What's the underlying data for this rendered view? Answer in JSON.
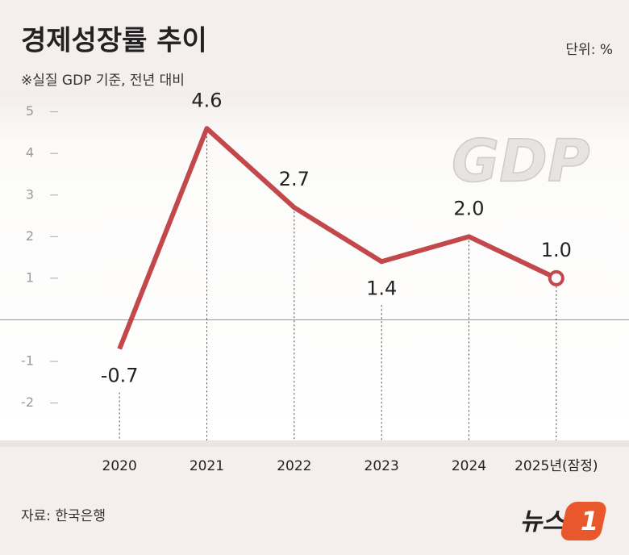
{
  "chart_data": {
    "type": "line",
    "title": "경제성장률 추이",
    "subtitle": "※실질 GDP 기준, 전년 대비",
    "unit": "단위: %",
    "source": "자료: 한국은행",
    "brand": "뉴스",
    "brand_mark": "1",
    "decoration_text": "GDP",
    "categories": [
      "2020",
      "2021",
      "2022",
      "2023",
      "2024",
      "2025년(잠정)"
    ],
    "values": [
      -0.7,
      4.6,
      2.7,
      1.4,
      2.0,
      1.0
    ],
    "value_labels": [
      "-0.7",
      "4.6",
      "2.7",
      "1.4",
      "2.0",
      "1.0"
    ],
    "color": "#c2484b",
    "ylim": [
      -2.9,
      5.4
    ],
    "yticks": [
      -2,
      -1,
      1,
      2,
      3,
      4,
      5
    ]
  }
}
